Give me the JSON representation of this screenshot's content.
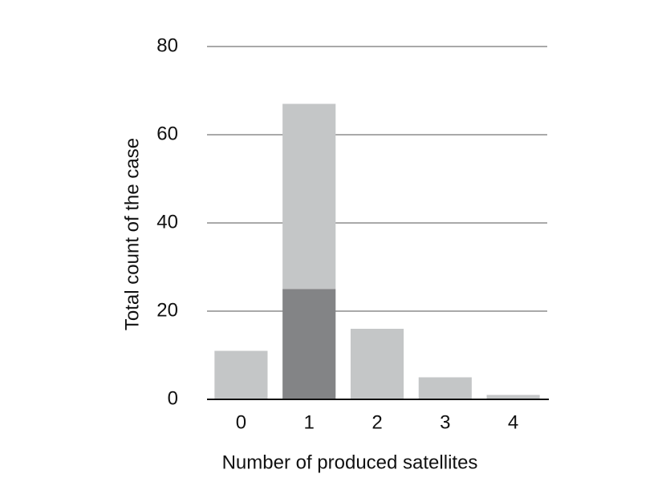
{
  "chart_data": {
    "type": "stacked_bar",
    "x_label": "Number of produced satellites",
    "y_label": "Total count of the case",
    "categories": [
      "0",
      "1",
      "2",
      "3",
      "4"
    ],
    "series": [
      {
        "color": "#838486",
        "values": [
          0,
          25,
          0,
          0,
          0
        ]
      },
      {
        "color": "#c4c6c7",
        "values": [
          11,
          42,
          16,
          5,
          1
        ]
      }
    ],
    "ylim": [
      0,
      80
    ],
    "yticks": [
      0,
      20,
      40,
      60,
      80
    ],
    "grid": true
  }
}
